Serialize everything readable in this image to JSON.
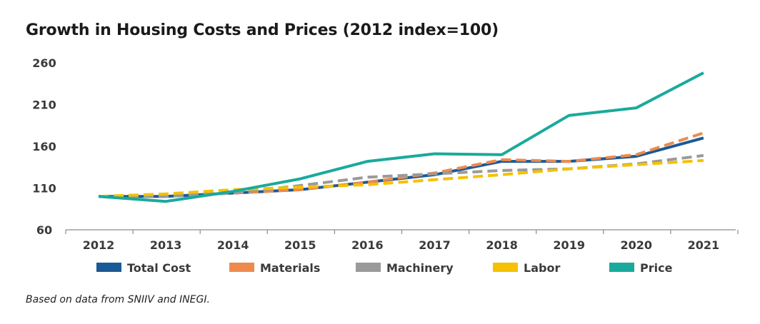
{
  "chart_data": {
    "type": "line",
    "title": "Growth in Housing Costs and Prices (2012 index=100)",
    "source": "Based on data from SNIIV and INEGI.",
    "x": [
      "2012",
      "2013",
      "2014",
      "2015",
      "2016",
      "2017",
      "2018",
      "2019",
      "2020",
      "2021"
    ],
    "ylim": [
      60,
      260
    ],
    "yticks": [
      60,
      110,
      160,
      210,
      260
    ],
    "grid": false,
    "legend": "bottom",
    "series": [
      {
        "name": "Total Cost",
        "color": "#1a5a96",
        "dash": "solid",
        "values": [
          100,
          100,
          104,
          108,
          117,
          126,
          142,
          142,
          148,
          170
        ]
      },
      {
        "name": "Materials",
        "color": "#ee8a4e",
        "dash": "dashed",
        "values": [
          100,
          101,
          104,
          108,
          117,
          128,
          144,
          142,
          150,
          176
        ]
      },
      {
        "name": "Machinery",
        "color": "#9a9a9a",
        "dash": "dashed",
        "values": [
          100,
          100,
          104,
          113,
          123,
          127,
          131,
          133,
          139,
          149
        ]
      },
      {
        "name": "Labor",
        "color": "#f5c100",
        "dash": "dashed",
        "values": [
          100,
          103,
          108,
          111,
          114,
          120,
          126,
          133,
          138,
          143
        ]
      },
      {
        "name": "Price",
        "color": "#19aa9c",
        "dash": "solid",
        "values": [
          100,
          94,
          106,
          121,
          142,
          151,
          150,
          197,
          206,
          248
        ]
      }
    ]
  }
}
